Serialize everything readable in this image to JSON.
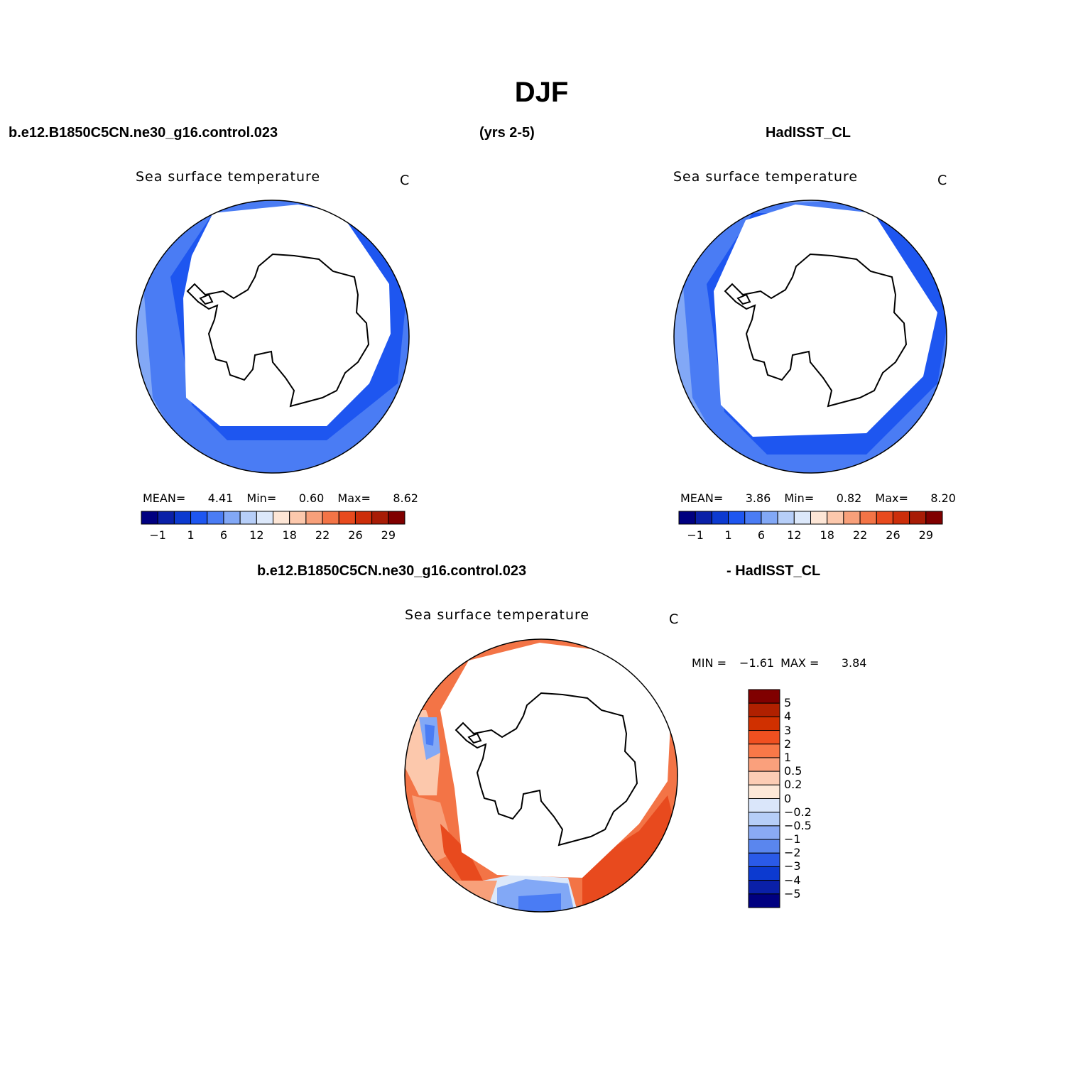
{
  "title": "DJF",
  "top_headers": {
    "left": "b.e12.B1850C5CN.ne30_g16.control.023",
    "center": "(yrs 2-5)",
    "right": "HadISST_CL"
  },
  "diff_header": {
    "left": "b.e12.B1850C5CN.ne30_g16.control.023",
    "right": "- HadISST_CL"
  },
  "panels": [
    {
      "id": "model",
      "title": "Sea surface temperature",
      "units": "C",
      "stats": {
        "mean_label": "MEAN=",
        "mean": "4.41",
        "min_label": "Min=",
        "min": "0.60",
        "max_label": "Max=",
        "max": "8.62"
      }
    },
    {
      "id": "obs",
      "title": "Sea surface temperature",
      "units": "C",
      "stats": {
        "mean_label": "MEAN=",
        "mean": "3.86",
        "min_label": "Min=",
        "min": "0.82",
        "max_label": "Max=",
        "max": "8.20"
      }
    },
    {
      "id": "diff",
      "title": "Sea surface temperature",
      "units": "C",
      "stats": {
        "min_label": "MIN =",
        "min": "−1.61",
        "max_label": "MAX =",
        "max": "3.84"
      }
    }
  ],
  "sst_colorbar": {
    "colors": [
      "#000080",
      "#0a20a8",
      "#0c3ad0",
      "#1e56f0",
      "#4a7cf4",
      "#82a8f6",
      "#b6cef8",
      "#dce8fa",
      "#fde6d6",
      "#fcc8ac",
      "#f8a07a",
      "#f37446",
      "#e84a1e",
      "#cc2e0a",
      "#a81c06",
      "#800000"
    ],
    "labels": [
      "−1",
      "1",
      "6",
      "12",
      "18",
      "22",
      "26",
      "29"
    ]
  },
  "diff_colorbar": {
    "colors_top_to_bottom": [
      "#800000",
      "#b02000",
      "#d03000",
      "#f05020",
      "#f87848",
      "#faa07c",
      "#fcccb4",
      "#fde8d8",
      "#dae6fa",
      "#b6cef8",
      "#8aaaf4",
      "#5a86ee",
      "#2a5ae8",
      "#0c3ad0",
      "#0a20a8",
      "#000080"
    ],
    "labels": [
      "5",
      "4",
      "3",
      "2",
      "1",
      "0.5",
      "0.2",
      "0",
      "−0.2",
      "−0.5",
      "−1",
      "−2",
      "−3",
      "−4",
      "−5"
    ]
  },
  "map_colors": {
    "land": "#ffffff",
    "coast": "#000000",
    "sst_cold": "#1e56f0",
    "sst_mid": "#4a7cf4",
    "sst_warm": "#82a8f6",
    "diff_warm_strong": "#e84a1e",
    "diff_warm": "#f37446",
    "diff_warm_light": "#f8a07a",
    "diff_warm_pale": "#fcc8ac",
    "diff_cool": "#82a8f6",
    "diff_cool_strong": "#4a7cf4",
    "diff_neutral": "#dce8fa"
  }
}
